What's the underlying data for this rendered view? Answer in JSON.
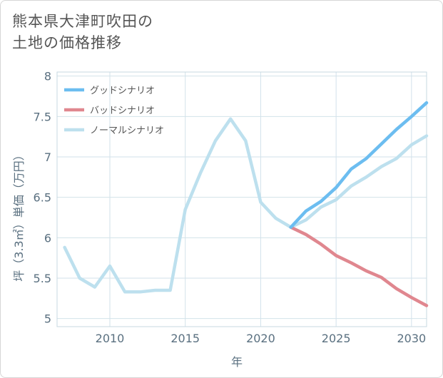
{
  "title_lines": [
    "熊本県大津町吹田の",
    "土地の価格推移"
  ],
  "chart_data": {
    "type": "line",
    "title": "熊本県大津町吹田の土地の価格推移",
    "xlabel": "年",
    "ylabel": "坪（3.3㎡）単価（万円）",
    "xlim": [
      2006.5,
      2031
    ],
    "ylim": [
      4.9,
      8.05
    ],
    "xticks": [
      2010,
      2015,
      2020,
      2025,
      2030
    ],
    "yticks": [
      5,
      5.5,
      6,
      6.5,
      7,
      7.5,
      8
    ],
    "ytick_labels": [
      "5",
      "5.5",
      "6",
      "6.5",
      "7",
      "7.5",
      "8"
    ],
    "legend_position": "top-left",
    "series": [
      {
        "name": "グッドシナリオ",
        "color": "#6cbdf0",
        "x": [
          2022,
          2023,
          2024,
          2025,
          2026,
          2027,
          2028,
          2029,
          2030,
          2031
        ],
        "values": [
          6.13,
          6.33,
          6.45,
          6.62,
          6.85,
          6.98,
          7.16,
          7.34,
          7.5,
          7.67
        ]
      },
      {
        "name": "バッドシナリオ",
        "color": "#e0878f",
        "x": [
          2022,
          2023,
          2024,
          2025,
          2026,
          2027,
          2028,
          2029,
          2030,
          2031
        ],
        "values": [
          6.13,
          6.04,
          5.92,
          5.78,
          5.69,
          5.59,
          5.51,
          5.37,
          5.26,
          5.16
        ]
      },
      {
        "name": "ノーマルシナリオ",
        "color": "#bde0ee",
        "x": [
          2007,
          2008,
          2009,
          2010,
          2011,
          2012,
          2013,
          2014,
          2015,
          2016,
          2017,
          2018,
          2019,
          2020,
          2021,
          2022,
          2023,
          2024,
          2025,
          2026,
          2027,
          2028,
          2029,
          2030,
          2031
        ],
        "values": [
          5.88,
          5.5,
          5.39,
          5.65,
          5.33,
          5.33,
          5.35,
          5.35,
          6.35,
          6.8,
          7.2,
          7.47,
          7.2,
          6.44,
          6.24,
          6.13,
          6.22,
          6.38,
          6.47,
          6.64,
          6.75,
          6.88,
          6.98,
          7.15,
          7.26
        ]
      }
    ]
  }
}
